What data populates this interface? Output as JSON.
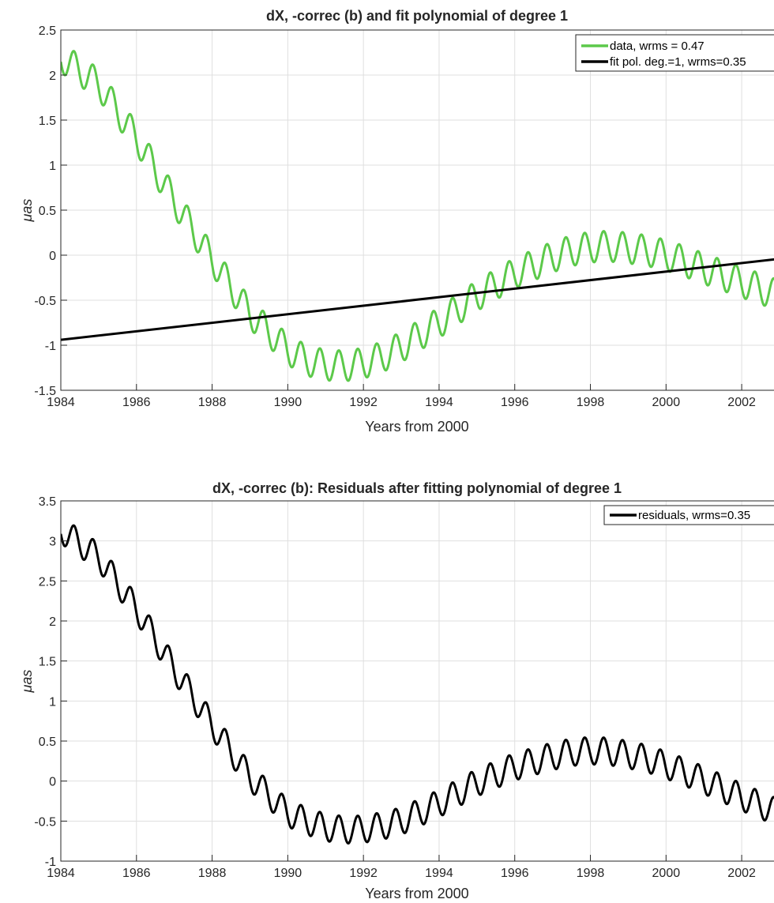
{
  "chart_data": [
    {
      "type": "line",
      "title": "dX, -correc (b) and fit polynomial of degree 1",
      "xlabel": "Years from 2000",
      "ylabel": "μas",
      "xlim": [
        1984,
        2003
      ],
      "ylim": [
        -1.5,
        2.5
      ],
      "xticks": [
        "1984",
        "1986",
        "1988",
        "1990",
        "1992",
        "1994",
        "1996",
        "1998",
        "2000",
        "2002"
      ],
      "yticks": [
        "2.5",
        "2",
        "1.5",
        "1",
        "0.5",
        "0",
        "-0.5",
        "-1",
        "-1.5"
      ],
      "grid": true,
      "legend_position": "top-right",
      "series": [
        {
          "name": "data, wrms = 0.47",
          "color": "#5cc94a",
          "ripple_amplitude": 0.17,
          "ripple_period_years": 0.5,
          "ripple_phase_year": 1984.35,
          "trend_x": [
            1984.0,
            1985.0,
            1986.0,
            1987.0,
            1988.0,
            1989.0,
            1990.0,
            1990.5,
            1991.0,
            1991.5,
            1992.0,
            1992.5,
            1993.0,
            1994.0,
            1995.0,
            1996.0,
            1997.0,
            1997.5,
            1998.0,
            1998.5,
            1999.0,
            1999.5,
            2000.0,
            2000.5,
            2001.0,
            2002.0,
            2003.0
          ],
          "trend_y": [
            2.2,
            1.9,
            1.3,
            0.6,
            -0.05,
            -0.65,
            -1.05,
            -1.17,
            -1.22,
            -1.23,
            -1.2,
            -1.13,
            -1.02,
            -0.75,
            -0.45,
            -0.2,
            -0.02,
            0.05,
            0.09,
            0.1,
            0.08,
            0.05,
            0.0,
            -0.07,
            -0.15,
            -0.3,
            -0.45
          ]
        },
        {
          "name": "fit pol. deg.=1, wrms=0.35",
          "color": "#000000",
          "x": [
            1984.0,
            2003.0
          ],
          "y": [
            -0.94,
            -0.04
          ]
        }
      ]
    },
    {
      "type": "line",
      "title": "dX, -correc (b): Residuals after fitting polynomial of degree 1",
      "xlabel": "Years from 2000",
      "ylabel": "μas",
      "xlim": [
        1984,
        2003
      ],
      "ylim": [
        -1.0,
        3.5
      ],
      "xticks": [
        "1984",
        "1986",
        "1988",
        "1990",
        "1992",
        "1994",
        "1996",
        "1998",
        "2000",
        "2002"
      ],
      "yticks": [
        "3.5",
        "3",
        "2.5",
        "2",
        "1.5",
        "1",
        "0.5",
        "0",
        "-0.5",
        "-1"
      ],
      "grid": true,
      "legend_position": "top-right",
      "series": [
        {
          "name": "residuals, wrms=0.35",
          "color": "#000000",
          "ripple_amplitude": 0.17,
          "ripple_period_years": 0.5,
          "ripple_phase_year": 1984.35,
          "trend_x": [
            1984.0,
            1985.0,
            1986.0,
            1987.0,
            1988.0,
            1989.0,
            1990.0,
            1990.5,
            1991.0,
            1991.5,
            1992.0,
            1992.5,
            1993.0,
            1994.0,
            1995.0,
            1996.0,
            1997.0,
            1997.5,
            1998.0,
            1998.5,
            1999.0,
            1999.5,
            2000.0,
            2000.5,
            2001.0,
            2002.0,
            2003.0
          ],
          "trend_y": [
            3.14,
            2.8,
            2.15,
            1.4,
            0.7,
            0.05,
            -0.4,
            -0.5,
            -0.58,
            -0.61,
            -0.6,
            -0.56,
            -0.5,
            -0.28,
            -0.02,
            0.18,
            0.31,
            0.36,
            0.38,
            0.37,
            0.33,
            0.28,
            0.2,
            0.11,
            0.01,
            -0.2,
            -0.4
          ]
        }
      ]
    }
  ]
}
